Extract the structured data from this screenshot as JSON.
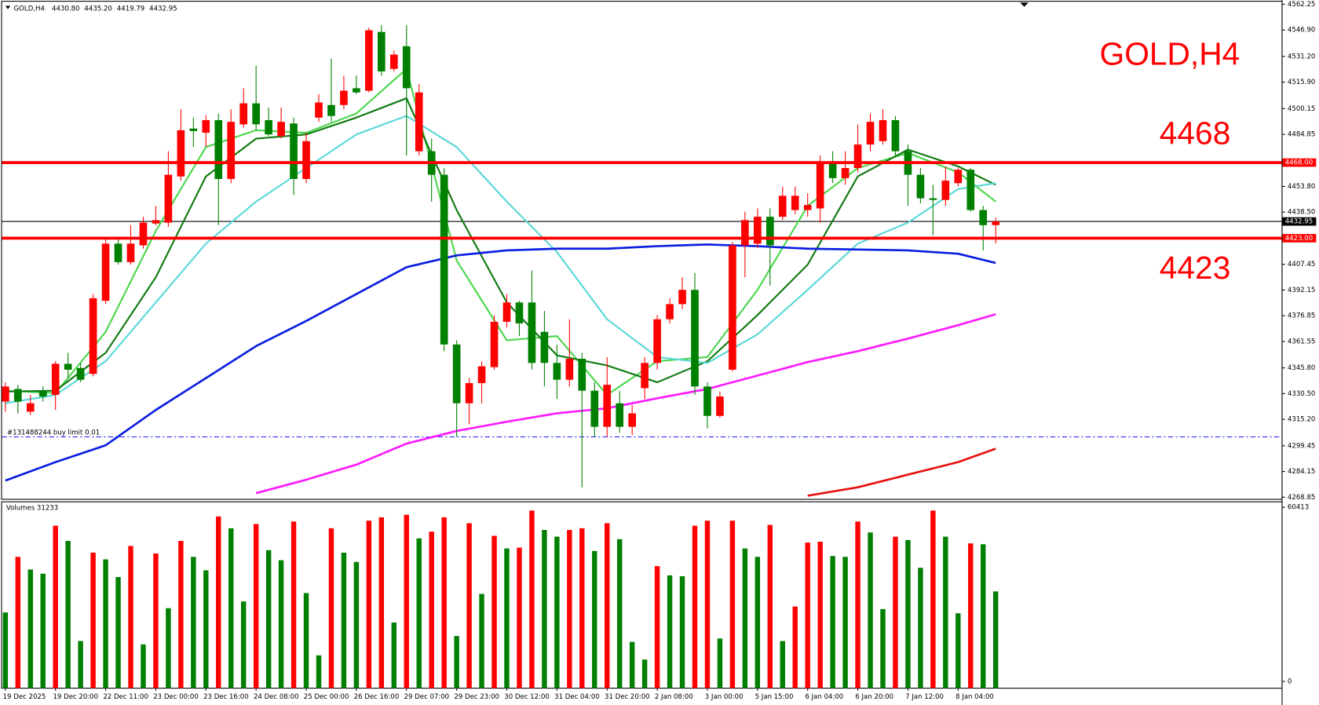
{
  "chart_data": {
    "type": "candlestick",
    "title": "GOLD,H4",
    "last_bar_labels": [
      "4430.80",
      "4435.20",
      "4419.79",
      "4432.95"
    ],
    "up_color": "#ff0000",
    "down_color": "#008000",
    "categories": [
      "19 Dec 2025",
      null,
      null,
      null,
      "19 Dec 20:00",
      null,
      null,
      null,
      "22 Dec 11:00",
      null,
      null,
      null,
      "23 Dec 00:00",
      null,
      null,
      null,
      "23 Dec 16:00",
      null,
      null,
      null,
      "24 Dec 08:00",
      null,
      null,
      null,
      "25 Dec 00:00",
      null,
      null,
      null,
      "26 Dec 16:00",
      null,
      null,
      null,
      "29 Dec 07:00",
      null,
      null,
      null,
      "29 Dec 23:00",
      null,
      null,
      null,
      "30 Dec 12:00",
      null,
      null,
      null,
      "31 Dec 04:00",
      null,
      null,
      null,
      "31 Dec 20:00",
      null,
      null,
      null,
      "2 Jan 08:00",
      null,
      null,
      null,
      "3 Jan 00:00",
      null,
      null,
      null,
      "5 Jan 15:00",
      null,
      null,
      null,
      "6 Jan 04:00",
      null,
      null,
      null,
      "6 Jan 20:00",
      null,
      null,
      null,
      "7 Jan 12:00",
      null,
      null,
      null,
      "8 Jan 04:00",
      null,
      null,
      null
    ],
    "open": [
      4325.75,
      4333.25,
      4319.75,
      4331.75,
      4329.75,
      4348.25,
      4345.75,
      4342.25,
      4385.75,
      4419.75,
      4408.75,
      4418.75,
      4431.75,
      4432.25,
      4459.75,
      4488.25,
      4485.75,
      4493.25,
      4458.25,
      4490.75,
      4503.25,
      4493.25,
      4483.75,
      4491.25,
      4458.25,
      4494.75,
      4502.25,
      4502.25,
      4512.25,
      4510.75,
      4545.75,
      4523.75,
      4537.25,
      4474.75,
      4474.75,
      4460.75,
      4359.75,
      4324.75,
      4336.75,
      4346.25,
      4373.25,
      4384.75,
      4384.75,
      4367.25,
      4348.75,
      4338.75,
      4351.25,
      4332.25,
      4310.75,
      4324.75,
      4310.75,
      4333.75,
      4348.75,
      4374.75,
      4383.75,
      4392.25,
      4334.75,
      4317.25,
      4344.75,
      4418.75,
      4419.75,
      4435.75,
      4435.75,
      4439.75,
      4439.75,
      4440.75,
      4467.25,
      4458.75,
      4464.75,
      4478.75,
      4480.75,
      4493.25,
      4474.75,
      4460.75,
      4446.75,
      4445.75,
      4455.75,
      4463.75,
      4439.75,
      4430.8
    ],
    "high": [
      4337.25,
      4335.75,
      4329.75,
      4334.75,
      4349.75,
      4354.75,
      4348.75,
      4389.75,
      4422.25,
      4422.25,
      4430.75,
      4435.75,
      4442.25,
      4474.75,
      4499.75,
      4494.75,
      4496.25,
      4497.25,
      4499.75,
      4512.25,
      4525.75,
      4500.75,
      4500.75,
      4494.75,
      4485.75,
      4508.75,
      4529.75,
      4519.75,
      4519.75,
      4548.25,
      4549.75,
      4534.75,
      4549.75,
      4514.75,
      4482.25,
      4464.75,
      4362.25,
      4339.75,
      4349.75,
      4377.25,
      4389.75,
      4385.75,
      4403.75,
      4379.75,
      4359.75,
      4374.75,
      4354.75,
      4337.25,
      4352.25,
      4332.25,
      4323.75,
      4352.25,
      4377.25,
      4387.25,
      4399.75,
      4402.25,
      4337.25,
      4331.75,
      4420.75,
      4438.75,
      4440.75,
      4440.75,
      4453.75,
      4453.75,
      4449.75,
      4472.25,
      4474.75,
      4474.75,
      4490.75,
      4497.25,
      4499.75,
      4495.75,
      4478.75,
      4464.75,
      4454.75,
      4465.75,
      4464.75,
      4464.75,
      4442.25,
      4435.2
    ],
    "low": [
      4319.75,
      4318.75,
      4317.75,
      4325.75,
      4320.75,
      4339.75,
      4337.25,
      4340.75,
      4383.75,
      4407.25,
      4407.25,
      4416.75,
      4430.75,
      4429.75,
      4457.25,
      4477.25,
      4477.25,
      4430.75,
      4455.75,
      4488.75,
      4487.25,
      4483.75,
      4482.25,
      4448.75,
      4455.75,
      4492.25,
      4492.25,
      4499.75,
      4508.75,
      4509.75,
      4519.75,
      4522.25,
      4472.25,
      4472.25,
      4444.75,
      4355.75,
      4304.75,
      4312.25,
      4324.75,
      4344.75,
      4369.75,
      4364.75,
      4344.75,
      4334.75,
      4327.25,
      4334.75,
      4274.75,
      4304.75,
      4304.75,
      4307.25,
      4305.75,
      4327.25,
      4344.75,
      4372.25,
      4380.75,
      4329.75,
      4309.75,
      4316.25,
      4343.75,
      4399.75,
      4417.25,
      4394.75,
      4433.75,
      4437.25,
      4435.75,
      4432.25,
      4455.75,
      4454.75,
      4462.25,
      4474.75,
      4478.75,
      4472.25,
      4442.25,
      4443.75,
      4424.75,
      4442.25,
      4453.75,
      4438.75,
      4415.75,
      4419.79
    ],
    "close": [
      4334.75,
      4325.75,
      4324.75,
      4328.75,
      4348.25,
      4344.75,
      4338.75,
      4387.25,
      4419.75,
      4408.75,
      4419.75,
      4432.25,
      4433.75,
      4460.75,
      4487.25,
      4486.75,
      4493.25,
      4458.25,
      4492.25,
      4503.25,
      4490.75,
      4484.75,
      4492.25,
      4458.25,
      4480.75,
      4503.75,
      4495.75,
      4510.75,
      4509.75,
      4546.75,
      4522.25,
      4532.25,
      4512.25,
      4509.75,
      4460.75,
      4359.75,
      4324.75,
      4336.75,
      4346.75,
      4373.25,
      4384.75,
      4372.25,
      4348.75,
      4348.75,
      4338.75,
      4351.25,
      4332.25,
      4310.75,
      4335.75,
      4310.75,
      4318.75,
      4348.75,
      4374.75,
      4383.75,
      4392.25,
      4334.75,
      4317.25,
      4328.75,
      4418.75,
      4433.75,
      4435.75,
      4418.75,
      4448.25,
      4448.25,
      4442.75,
      4467.25,
      4458.75,
      4464.75,
      4478.75,
      4492.25,
      4493.25,
      4474.75,
      4460.75,
      4446.75,
      4445.75,
      4457.25,
      4463.75,
      4439.75,
      4430.75,
      4432.95
    ],
    "ylim": [
      4268.85,
      4562.25
    ],
    "yticks": [
      4562.25,
      {
        "value": 4546.9,
        "label": "4546.90"
      },
      {
        "value": 4531.2,
        "label": "4531.20"
      },
      {
        "value": 4515.9,
        "label": "4515.90"
      },
      4500.15,
      4484.85,
      {
        "value": 4453.8,
        "label": "4453.80"
      },
      {
        "value": 4438.5,
        "label": "4438.50"
      },
      4407.45,
      4392.15,
      4376.85,
      4361.55,
      {
        "value": 4345.8,
        "label": "4345.80"
      },
      {
        "value": 4330.5,
        "label": "4330.50"
      },
      {
        "value": 4315.2,
        "label": "4315.20"
      },
      4299.45,
      4284.15,
      4268.85
    ],
    "moving_averages": [
      {
        "color": "#4cd64c",
        "x": [
          0,
          4,
          8,
          12,
          16,
          20,
          24,
          28,
          32,
          36,
          40,
          44,
          48,
          52,
          56,
          60,
          64,
          68,
          72,
          76,
          79
        ],
        "values": [
          4332.25,
          4330.75,
          4367.25,
          4427.25,
          4477.25,
          4487.25,
          4485.75,
          4497.25,
          4523.75,
          4409.75,
          4362.25,
          4364.75,
          4329.75,
          4349.75,
          4352.25,
          4392.25,
          4442.25,
          4464.75,
          4473.75,
          4462.25,
          4444.75
        ]
      },
      {
        "color": "#0f7a0f",
        "x": [
          0,
          4,
          8,
          12,
          16,
          20,
          24,
          28,
          32,
          36,
          40,
          44,
          48,
          52,
          56,
          60,
          64,
          68,
          72,
          76,
          79
        ],
        "values": [
          4331.75,
          4332.25,
          4354.75,
          4399.75,
          4459.75,
          4482.25,
          4484.75,
          4494.75,
          4506.25,
          4439.75,
          4384.75,
          4353.25,
          4347.25,
          4337.25,
          4349.75,
          4377.25,
          4407.25,
          4459.75,
          4475.75,
          4465.75,
          4454.75
        ]
      },
      {
        "color": "#5ad8d8",
        "x": [
          0,
          4,
          8,
          12,
          16,
          20,
          24,
          28,
          32,
          36,
          40,
          44,
          48,
          52,
          56,
          60,
          64,
          68,
          72,
          76,
          79
        ],
        "values": [
          4324.75,
          4329.75,
          4349.75,
          4384.75,
          4419.75,
          4444.75,
          4464.75,
          4484.75,
          4495.75,
          4477.25,
          4444.75,
          4414.75,
          4374.75,
          4352.25,
          4348.75,
          4365.75,
          4392.25,
          4419.75,
          4432.25,
          4452.25,
          4455.75
        ]
      },
      {
        "color": "#0a1ee0",
        "x": [
          0,
          4,
          8,
          12,
          16,
          20,
          24,
          28,
          32,
          36,
          40,
          44,
          48,
          52,
          56,
          60,
          64,
          68,
          72,
          76,
          79
        ],
        "values": [
          4278.75,
          4289.75,
          4299.75,
          4320.75,
          4339.75,
          4358.75,
          4373.75,
          4389.75,
          4405.75,
          4412.75,
          4415.75,
          4416.75,
          4416.75,
          4418.25,
          4419.25,
          4418.25,
          4416.75,
          4416.25,
          4415.75,
          4413.75,
          4408.25
        ]
      },
      {
        "color": "#ff1aff",
        "x": [
          0,
          4,
          8,
          12,
          16,
          20,
          24,
          28,
          32,
          36,
          40,
          44,
          48,
          52,
          56,
          60,
          64,
          68,
          72,
          76,
          79
        ],
        "values": [
          null,
          null,
          null,
          null,
          null,
          4271.25,
          4279.25,
          4288.25,
          4300.75,
          4308.25,
          4313.75,
          4318.75,
          4321.75,
          4327.75,
          4333.25,
          4341.25,
          4349.25,
          4355.75,
          4363.25,
          4371.25,
          4377.75
        ]
      },
      {
        "color": "#e81010",
        "x": [
          0,
          4,
          8,
          12,
          16,
          20,
          24,
          28,
          32,
          36,
          40,
          44,
          48,
          52,
          56,
          60,
          64,
          68,
          72,
          76,
          79
        ],
        "values": [
          null,
          null,
          null,
          null,
          null,
          null,
          null,
          null,
          null,
          null,
          null,
          null,
          null,
          null,
          null,
          null,
          4269.75,
          4274.75,
          4282.25,
          4289.75,
          4297.75
        ]
      }
    ],
    "levels": [
      {
        "value": 4468,
        "label": "4468",
        "axis_label": "4468.00",
        "color": "#ff0000"
      },
      {
        "value": 4423,
        "label": "4423",
        "axis_label": "4423.00",
        "color": "#ff0000"
      }
    ],
    "price_line": {
      "value": 4432.95,
      "axis_label": "4432.95",
      "color": "#000000"
    },
    "order_line": {
      "value": 4304.75,
      "label": "#131488244 buy limit 0.01",
      "color": "#1a1aff"
    },
    "volume": {
      "title": "Volumes 31233",
      "up_color": "#ff0000",
      "down_color": "#008000",
      "ylim": [
        0,
        60413
      ],
      "yticks": [
        0,
        60413
      ],
      "values": [
        23944,
        43216,
        38836,
        37376,
        54020,
        48764,
        14016,
        44676,
        42340,
        36208,
        47012,
        12848,
        44384,
        25404,
        48764,
        43216,
        38544,
        57232,
        53144,
        27740,
        54604,
        45552,
        42048,
        55480,
        30660,
        9052,
        53144,
        44676,
        41464,
        55772,
        56940,
        20440,
        57816,
        49640,
        51976,
        56940,
        15768,
        54896,
        30368,
        50516,
        46136,
        46428,
        59276,
        52560,
        50224,
        52560,
        53144,
        45260,
        54896,
        49348,
        13724,
        7592,
        40004,
        36792,
        36500,
        54020,
        55772,
        14892,
        55772,
        46136,
        43216,
        54312,
        14016,
        25988,
        48180,
        48472,
        43508,
        43216,
        55480,
        51684,
        25112,
        50224,
        49056,
        39420,
        59276,
        50224,
        23652,
        47888,
        47596,
        31233
      ]
    }
  }
}
